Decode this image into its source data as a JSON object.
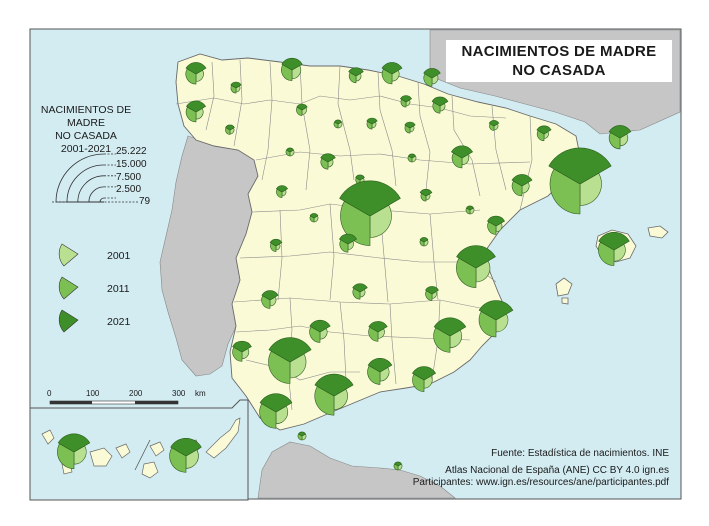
{
  "title_lines": [
    "NACIMIENTOS DE MADRE",
    "NO CASADA"
  ],
  "legend": {
    "title_lines": [
      "NACIMIENTOS DE MADRE",
      "NO CASADA",
      "2001-2021"
    ],
    "size_values": [
      "25.222",
      "15.000",
      "7.500",
      "2.500",
      "79"
    ],
    "years": [
      {
        "label": "2001",
        "color": "#b9df91"
      },
      {
        "label": "2011",
        "color": "#7cc053"
      },
      {
        "label": "2021",
        "color": "#3e8f2a"
      }
    ]
  },
  "scale": {
    "ticks": [
      "0",
      "100",
      "200",
      "300"
    ],
    "unit": "km"
  },
  "credits": {
    "source": "Fuente: Estadística de nacimientos. INE",
    "atlas": "Atlas Nacional de España (ANE) CC BY 4.0 ign.es",
    "participants": "Participantes: www.ign.es/resources/ane/participantes.pdf"
  },
  "colors": {
    "sea": "#d3ecf2",
    "spain": "#fafad7",
    "other_land": "#c6c6c6",
    "border": "#666666"
  },
  "symbols_note_max": 25222,
  "provinces": [
    {
      "id": "a-coruna",
      "v": [
        1100,
        2000,
        2600
      ]
    },
    {
      "id": "lugo",
      "v": [
        300,
        500,
        700
      ]
    },
    {
      "id": "asturias",
      "v": [
        1500,
        2200,
        2700
      ]
    },
    {
      "id": "cantabria",
      "v": [
        500,
        900,
        1400
      ]
    },
    {
      "id": "bizkaia",
      "v": [
        1000,
        1900,
        2600
      ]
    },
    {
      "id": "gipuzkoa",
      "v": [
        700,
        1300,
        1800
      ]
    },
    {
      "id": "navarra",
      "v": [
        500,
        1000,
        1600
      ]
    },
    {
      "id": "araba",
      "v": [
        300,
        500,
        800
      ]
    },
    {
      "id": "pontevedra",
      "v": [
        1000,
        1900,
        2400
      ]
    },
    {
      "id": "ourense",
      "v": [
        300,
        400,
        500
      ]
    },
    {
      "id": "leon",
      "v": [
        400,
        600,
        700
      ]
    },
    {
      "id": "palencia",
      "v": [
        100,
        200,
        300
      ]
    },
    {
      "id": "burgos",
      "v": [
        300,
        500,
        700
      ]
    },
    {
      "id": "la-rioja",
      "v": [
        200,
        500,
        700
      ]
    },
    {
      "id": "huesca",
      "v": [
        200,
        400,
        600
      ]
    },
    {
      "id": "lleida",
      "v": [
        400,
        900,
        1300
      ]
    },
    {
      "id": "girona",
      "v": [
        1200,
        2300,
        3100
      ]
    },
    {
      "id": "barcelona",
      "v": [
        9000,
        17500,
        25222
      ]
    },
    {
      "id": "tarragona",
      "v": [
        1000,
        1900,
        2600
      ]
    },
    {
      "id": "zaragoza",
      "v": [
        900,
        1900,
        2900
      ]
    },
    {
      "id": "zamora",
      "v": [
        100,
        200,
        300
      ]
    },
    {
      "id": "valladolid",
      "v": [
        500,
        1000,
        1400
      ]
    },
    {
      "id": "soria",
      "v": [
        79,
        150,
        200
      ]
    },
    {
      "id": "segovia",
      "v": [
        200,
        350,
        500
      ]
    },
    {
      "id": "salamanca",
      "v": [
        300,
        600,
        800
      ]
    },
    {
      "id": "avila",
      "v": [
        150,
        250,
        400
      ]
    },
    {
      "id": "madrid",
      "v": [
        9000,
        17000,
        24000
      ]
    },
    {
      "id": "guadalajara",
      "v": [
        200,
        500,
        900
      ]
    },
    {
      "id": "teruel",
      "v": [
        100,
        200,
        300
      ]
    },
    {
      "id": "castellon",
      "v": [
        700,
        1400,
        1900
      ]
    },
    {
      "id": "valencia",
      "v": [
        3800,
        7500,
        9800
      ]
    },
    {
      "id": "cuenca",
      "v": [
        150,
        300,
        400
      ]
    },
    {
      "id": "toledo",
      "v": [
        600,
        1300,
        1900
      ]
    },
    {
      "id": "caceres",
      "v": [
        300,
        600,
        900
      ]
    },
    {
      "id": "badajoz",
      "v": [
        700,
        1400,
        1700
      ]
    },
    {
      "id": "ciudad-real",
      "v": [
        500,
        1000,
        1400
      ]
    },
    {
      "id": "albacete",
      "v": [
        400,
        800,
        1100
      ]
    },
    {
      "id": "alicante",
      "v": [
        2800,
        5600,
        7400
      ]
    },
    {
      "id": "murcia",
      "v": [
        2700,
        5200,
        6500
      ]
    },
    {
      "id": "huelva",
      "v": [
        900,
        1700,
        2300
      ]
    },
    {
      "id": "sevilla",
      "v": [
        5000,
        9000,
        11500
      ]
    },
    {
      "id": "cordoba",
      "v": [
        1000,
        2100,
        2700
      ]
    },
    {
      "id": "jaen",
      "v": [
        800,
        1700,
        2200
      ]
    },
    {
      "id": "granada",
      "v": [
        1600,
        3000,
        3700
      ]
    },
    {
      "id": "almeria",
      "v": [
        1300,
        2600,
        3500
      ]
    },
    {
      "id": "malaga",
      "v": [
        3600,
        7200,
        9500
      ]
    },
    {
      "id": "cadiz",
      "v": [
        2700,
        5200,
        6600
      ]
    },
    {
      "id": "baleares",
      "v": [
        2500,
        4700,
        6100
      ]
    },
    {
      "id": "ceuta",
      "v": [
        79,
        150,
        250
      ]
    },
    {
      "id": "melilla",
      "v": [
        100,
        200,
        300
      ]
    },
    {
      "id": "las-palmas",
      "v": [
        3000,
        5200,
        6100
      ]
    },
    {
      "id": "santa-cruz-tenerife",
      "v": [
        2900,
        5400,
        6500
      ]
    },
    {
      "id": "legend-symbol",
      "v": [
        25222,
        25222,
        25222
      ]
    }
  ]
}
